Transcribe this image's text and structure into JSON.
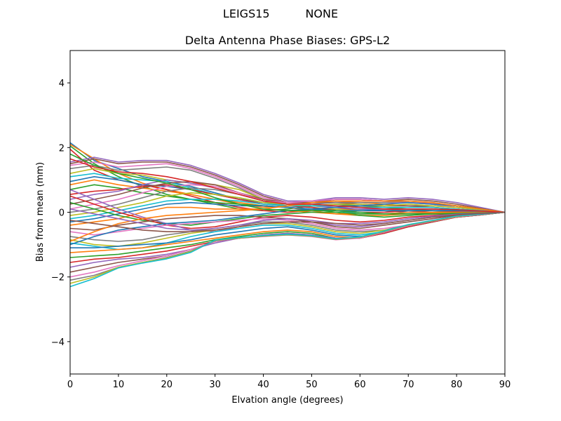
{
  "figure": {
    "suptitle": "LEIGS15          NONE"
  },
  "chart_data": {
    "type": "line",
    "title": "Delta Antenna Phase Biases: GPS-L2",
    "suptitle": "LEIGS15          NONE",
    "xlabel": "Elvation angle (degrees)",
    "ylabel": "Bias from mean (mm)",
    "xlim": [
      0,
      90
    ],
    "ylim": [
      -5,
      5
    ],
    "xticks": [
      0,
      10,
      20,
      30,
      40,
      50,
      60,
      70,
      80,
      90
    ],
    "yticks": [
      -4,
      -2,
      0,
      2,
      4
    ],
    "ytick_labels": [
      "−4",
      "−2",
      "0",
      "2",
      "4"
    ],
    "grid": false,
    "legend": null,
    "colors": [
      "#1f77b4",
      "#ff7f0e",
      "#2ca02c",
      "#d62728",
      "#9467bd",
      "#8c564b",
      "#e377c2",
      "#7f7f7f",
      "#bcbd22",
      "#17becf"
    ],
    "x": [
      0,
      5,
      10,
      15,
      20,
      25,
      30,
      35,
      40,
      45,
      50,
      55,
      60,
      65,
      70,
      75,
      80,
      85,
      90
    ],
    "series": [
      {
        "values": [
          2.15,
          1.6,
          1.35,
          1.1,
          0.95,
          0.8,
          0.6,
          0.4,
          0.3,
          0.3,
          0.35,
          0.4,
          0.4,
          0.35,
          0.3,
          0.25,
          0.15,
          0.08,
          0
        ]
      },
      {
        "values": [
          2.1,
          1.65,
          1.2,
          0.9,
          0.7,
          0.55,
          0.4,
          0.25,
          0.15,
          0.2,
          0.3,
          0.35,
          0.3,
          0.25,
          0.2,
          0.15,
          0.1,
          0.05,
          0
        ]
      },
      {
        "values": [
          2.05,
          1.5,
          1.1,
          0.8,
          0.55,
          0.4,
          0.25,
          0.1,
          0.05,
          0.1,
          0.2,
          0.25,
          0.2,
          0.15,
          0.1,
          0.05,
          0.02,
          0.01,
          0
        ]
      },
      {
        "values": [
          1.95,
          1.3,
          1.0,
          0.85,
          0.7,
          0.5,
          0.3,
          0.15,
          0.05,
          0.0,
          0.05,
          0.1,
          0.1,
          0.1,
          0.05,
          0.0,
          0.0,
          0.0,
          0
        ]
      },
      {
        "values": [
          1.55,
          1.7,
          1.55,
          1.6,
          1.6,
          1.45,
          1.2,
          0.9,
          0.55,
          0.35,
          0.35,
          0.45,
          0.45,
          0.4,
          0.45,
          0.4,
          0.3,
          0.15,
          0
        ]
      },
      {
        "values": [
          1.5,
          1.65,
          1.5,
          1.55,
          1.55,
          1.4,
          1.15,
          0.85,
          0.5,
          0.3,
          0.3,
          0.4,
          0.4,
          0.35,
          0.4,
          0.35,
          0.25,
          0.12,
          0
        ]
      },
      {
        "values": [
          1.45,
          1.55,
          1.4,
          1.45,
          1.5,
          1.35,
          1.1,
          0.8,
          0.45,
          0.3,
          0.25,
          0.3,
          0.3,
          0.3,
          0.3,
          0.28,
          0.2,
          0.1,
          0
        ]
      },
      {
        "values": [
          1.35,
          1.45,
          1.3,
          1.35,
          1.4,
          1.3,
          1.05,
          0.75,
          0.4,
          0.25,
          0.2,
          0.2,
          0.2,
          0.2,
          0.2,
          0.2,
          0.15,
          0.08,
          0
        ]
      },
      {
        "values": [
          1.2,
          1.35,
          1.2,
          1.15,
          1.0,
          0.9,
          0.85,
          0.7,
          0.4,
          0.25,
          0.15,
          0.1,
          0.05,
          0.05,
          0.05,
          0.05,
          0.05,
          0.02,
          0
        ]
      },
      {
        "values": [
          1.1,
          1.2,
          1.05,
          1.0,
          0.95,
          0.75,
          0.55,
          0.45,
          0.3,
          0.2,
          0.15,
          0.05,
          -0.05,
          -0.05,
          0.0,
          0.0,
          0.0,
          0.0,
          0
        ]
      },
      {
        "values": [
          0.95,
          1.1,
          1.0,
          0.85,
          0.8,
          0.7,
          0.55,
          0.4,
          0.3,
          0.25,
          0.2,
          0.15,
          0.1,
          0.05,
          0.0,
          -0.02,
          -0.03,
          -0.02,
          0
        ]
      },
      {
        "values": [
          0.85,
          1.0,
          0.85,
          0.75,
          0.65,
          0.55,
          0.4,
          0.3,
          0.2,
          0.15,
          0.05,
          -0.05,
          -0.1,
          -0.1,
          -0.05,
          -0.03,
          -0.02,
          -0.01,
          0
        ]
      },
      {
        "values": [
          0.7,
          0.85,
          0.75,
          0.6,
          0.5,
          0.4,
          0.3,
          0.25,
          0.2,
          0.15,
          0.1,
          0.0,
          -0.1,
          -0.15,
          -0.1,
          -0.05,
          -0.05,
          -0.02,
          0
        ]
      },
      {
        "values": [
          0.55,
          0.65,
          0.7,
          0.8,
          0.85,
          0.7,
          0.55,
          0.4,
          0.25,
          0.2,
          0.15,
          0.05,
          0.0,
          0.0,
          0.05,
          0.05,
          0.03,
          0.02,
          0
        ]
      },
      {
        "values": [
          0.4,
          0.55,
          0.65,
          0.85,
          1.0,
          0.9,
          0.75,
          0.55,
          0.35,
          0.25,
          0.2,
          0.15,
          0.1,
          0.1,
          0.1,
          0.1,
          0.05,
          0.03,
          0
        ]
      },
      {
        "values": [
          0.25,
          0.4,
          0.55,
          0.75,
          0.9,
          0.95,
          0.85,
          0.6,
          0.4,
          0.3,
          0.3,
          0.3,
          0.25,
          0.2,
          0.2,
          0.15,
          0.1,
          0.05,
          0
        ]
      },
      {
        "values": [
          0.1,
          0.25,
          0.4,
          0.6,
          0.8,
          0.85,
          0.8,
          0.6,
          0.35,
          0.3,
          0.35,
          0.4,
          0.4,
          0.35,
          0.3,
          0.25,
          0.15,
          0.08,
          0
        ]
      },
      {
        "values": [
          0.0,
          0.1,
          0.25,
          0.45,
          0.65,
          0.75,
          0.7,
          0.55,
          0.35,
          0.25,
          0.25,
          0.3,
          0.3,
          0.3,
          0.35,
          0.3,
          0.2,
          0.1,
          0
        ]
      },
      {
        "values": [
          -0.1,
          0.0,
          0.15,
          0.3,
          0.5,
          0.6,
          0.55,
          0.45,
          0.3,
          0.25,
          0.2,
          0.25,
          0.25,
          0.2,
          0.25,
          0.2,
          0.15,
          0.08,
          0
        ]
      },
      {
        "values": [
          -0.2,
          -0.1,
          0.05,
          0.2,
          0.35,
          0.4,
          0.4,
          0.35,
          0.25,
          0.2,
          0.2,
          0.2,
          0.15,
          0.15,
          0.15,
          0.15,
          0.1,
          0.05,
          0
        ]
      },
      {
        "values": [
          -0.3,
          -0.2,
          -0.05,
          0.1,
          0.25,
          0.3,
          0.25,
          0.2,
          0.2,
          0.15,
          0.1,
          0.05,
          0.05,
          0.05,
          0.05,
          0.05,
          0.05,
          0.03,
          0
        ]
      },
      {
        "values": [
          -0.4,
          -0.3,
          -0.2,
          0.0,
          0.15,
          0.15,
          0.1,
          0.1,
          0.1,
          0.05,
          0.0,
          -0.05,
          -0.05,
          -0.05,
          0.0,
          0.0,
          0.0,
          0.0,
          0
        ]
      },
      {
        "values": [
          0.3,
          0.1,
          -0.1,
          -0.25,
          -0.35,
          -0.4,
          -0.3,
          -0.2,
          -0.1,
          -0.05,
          0.0,
          0.0,
          -0.05,
          -0.05,
          -0.05,
          -0.05,
          -0.03,
          -0.02,
          0
        ]
      },
      {
        "values": [
          0.5,
          0.25,
          0.0,
          -0.2,
          -0.4,
          -0.5,
          -0.45,
          -0.3,
          -0.15,
          -0.1,
          -0.15,
          -0.25,
          -0.3,
          -0.25,
          -0.15,
          -0.1,
          -0.05,
          -0.02,
          0
        ]
      },
      {
        "values": [
          0.7,
          0.4,
          0.1,
          -0.15,
          -0.35,
          -0.55,
          -0.6,
          -0.45,
          -0.25,
          -0.2,
          -0.3,
          -0.4,
          -0.45,
          -0.35,
          -0.25,
          -0.15,
          -0.1,
          -0.05,
          0
        ]
      },
      {
        "values": [
          -0.5,
          -0.55,
          -0.4,
          -0.3,
          -0.2,
          -0.15,
          -0.1,
          -0.1,
          -0.15,
          -0.2,
          -0.3,
          -0.45,
          -0.5,
          -0.4,
          -0.3,
          -0.2,
          -0.1,
          -0.05,
          0
        ]
      },
      {
        "values": [
          -0.6,
          -0.7,
          -0.6,
          -0.5,
          -0.4,
          -0.35,
          -0.3,
          -0.25,
          -0.2,
          -0.25,
          -0.35,
          -0.5,
          -0.55,
          -0.5,
          -0.4,
          -0.25,
          -0.15,
          -0.08,
          0
        ]
      },
      {
        "values": [
          -0.75,
          -0.85,
          -0.9,
          -0.85,
          -0.7,
          -0.6,
          -0.5,
          -0.4,
          -0.3,
          -0.3,
          -0.4,
          -0.55,
          -0.6,
          -0.55,
          -0.4,
          -0.3,
          -0.15,
          -0.08,
          0
        ]
      },
      {
        "values": [
          -0.85,
          -1.0,
          -1.05,
          -0.95,
          -0.8,
          -0.65,
          -0.55,
          -0.45,
          -0.35,
          -0.35,
          -0.45,
          -0.6,
          -0.65,
          -0.55,
          -0.45,
          -0.3,
          -0.15,
          -0.08,
          0
        ]
      },
      {
        "values": [
          -0.95,
          -1.05,
          -1.15,
          -1.1,
          -0.95,
          -0.75,
          -0.6,
          -0.5,
          -0.4,
          -0.4,
          -0.5,
          -0.65,
          -0.7,
          -0.6,
          -0.45,
          -0.3,
          -0.15,
          -0.08,
          0
        ]
      },
      {
        "values": [
          -1.1,
          -1.1,
          -1.05,
          -1.0,
          -0.95,
          -0.85,
          -0.7,
          -0.6,
          -0.5,
          -0.45,
          -0.55,
          -0.7,
          -0.75,
          -0.65,
          -0.45,
          -0.3,
          -0.15,
          -0.08,
          0
        ]
      },
      {
        "values": [
          -1.25,
          -1.2,
          -1.15,
          -1.1,
          -1.0,
          -0.9,
          -0.8,
          -0.7,
          -0.6,
          -0.55,
          -0.6,
          -0.75,
          -0.8,
          -0.65,
          -0.45,
          -0.3,
          -0.15,
          -0.08,
          0
        ]
      },
      {
        "values": [
          -1.4,
          -1.35,
          -1.3,
          -1.2,
          -1.1,
          -1.0,
          -0.85,
          -0.75,
          -0.65,
          -0.6,
          -0.65,
          -0.8,
          -0.8,
          -0.65,
          -0.45,
          -0.3,
          -0.15,
          -0.08,
          0
        ]
      },
      {
        "values": [
          -1.55,
          -1.45,
          -1.4,
          -1.3,
          -1.2,
          -1.05,
          -0.9,
          -0.8,
          -0.7,
          -0.65,
          -0.7,
          -0.8,
          -0.8,
          -0.65,
          -0.45,
          -0.3,
          -0.15,
          -0.08,
          0
        ]
      },
      {
        "values": [
          -1.7,
          -1.55,
          -1.45,
          -1.4,
          -1.3,
          -1.15,
          -0.95,
          -0.8,
          -0.7,
          -0.65,
          -0.7,
          -0.8,
          -0.78,
          -0.62,
          -0.42,
          -0.28,
          -0.14,
          -0.07,
          0
        ]
      },
      {
        "values": [
          -1.85,
          -1.7,
          -1.55,
          -1.45,
          -1.35,
          -1.15,
          -0.9,
          -0.8,
          -0.72,
          -0.68,
          -0.72,
          -0.82,
          -0.78,
          -0.62,
          -0.42,
          -0.28,
          -0.14,
          -0.07,
          0
        ]
      },
      {
        "values": [
          -2.0,
          -1.85,
          -1.65,
          -1.5,
          -1.35,
          -1.15,
          -0.9,
          -0.8,
          -0.75,
          -0.7,
          -0.75,
          -0.85,
          -0.8,
          -0.62,
          -0.42,
          -0.28,
          -0.14,
          -0.07,
          0
        ]
      },
      {
        "values": [
          -2.1,
          -1.95,
          -1.7,
          -1.55,
          -1.4,
          -1.2,
          -0.88,
          -0.8,
          -0.74,
          -0.7,
          -0.74,
          -0.84,
          -0.78,
          -0.6,
          -0.4,
          -0.27,
          -0.13,
          -0.06,
          0
        ]
      },
      {
        "values": [
          -2.2,
          -2.0,
          -1.7,
          -1.55,
          -1.42,
          -1.22,
          -0.87,
          -0.79,
          -0.73,
          -0.69,
          -0.73,
          -0.83,
          -0.77,
          -0.59,
          -0.39,
          -0.26,
          -0.13,
          -0.06,
          0
        ]
      },
      {
        "values": [
          -2.3,
          -2.05,
          -1.72,
          -1.57,
          -1.44,
          -1.24,
          -0.86,
          -0.78,
          -0.72,
          -0.68,
          -0.72,
          -0.82,
          -0.76,
          -0.58,
          -0.38,
          -0.25,
          -0.12,
          -0.06,
          0
        ]
      },
      {
        "values": [
          -1.0,
          -0.75,
          -0.55,
          -0.45,
          -0.35,
          -0.3,
          -0.25,
          -0.15,
          -0.05,
          0.05,
          0.1,
          0.15,
          0.2,
          0.25,
          0.3,
          0.25,
          0.2,
          0.1,
          0
        ]
      },
      {
        "values": [
          -0.9,
          -0.6,
          -0.35,
          -0.2,
          -0.1,
          -0.05,
          0.0,
          0.05,
          0.1,
          0.2,
          0.3,
          0.35,
          0.35,
          0.35,
          0.35,
          0.3,
          0.2,
          0.1,
          0
        ]
      },
      {
        "values": [
          1.8,
          1.45,
          1.2,
          1.05,
          0.9,
          0.7,
          0.45,
          0.25,
          0.1,
          0.05,
          0.05,
          0.05,
          0.0,
          -0.05,
          -0.05,
          -0.05,
          -0.05,
          -0.02,
          0
        ]
      },
      {
        "values": [
          1.65,
          1.4,
          1.25,
          1.2,
          1.1,
          0.95,
          0.75,
          0.55,
          0.35,
          0.25,
          0.25,
          0.2,
          0.15,
          0.1,
          0.1,
          0.1,
          0.08,
          0.04,
          0
        ]
      },
      {
        "values": [
          0.1,
          -0.05,
          -0.2,
          -0.35,
          -0.5,
          -0.55,
          -0.5,
          -0.4,
          -0.25,
          -0.2,
          -0.25,
          -0.35,
          -0.35,
          -0.3,
          -0.2,
          -0.12,
          -0.06,
          -0.03,
          0
        ]
      },
      {
        "values": [
          -0.25,
          -0.35,
          -0.45,
          -0.55,
          -0.6,
          -0.6,
          -0.55,
          -0.45,
          -0.35,
          -0.3,
          -0.3,
          -0.35,
          -0.4,
          -0.35,
          -0.25,
          -0.15,
          -0.08,
          -0.04,
          0
        ]
      }
    ]
  }
}
